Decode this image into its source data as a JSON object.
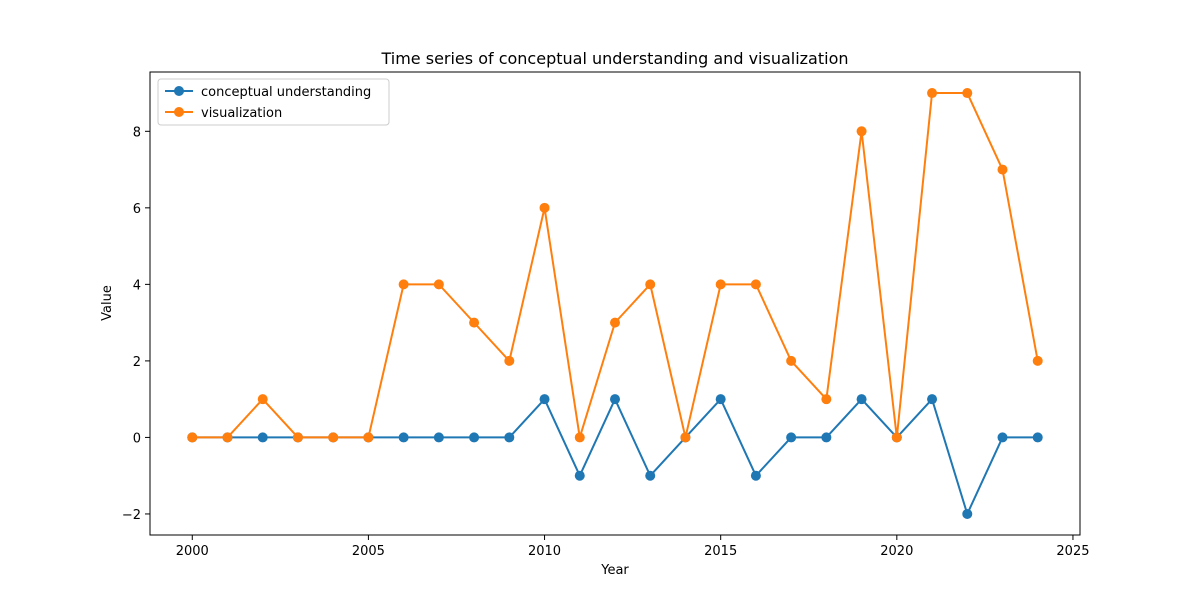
{
  "chart_data": {
    "type": "line",
    "title": "Time series of conceptual understanding and visualization",
    "xlabel": "Year",
    "ylabel": "Value",
    "x": [
      2000,
      2001,
      2002,
      2003,
      2004,
      2005,
      2006,
      2007,
      2008,
      2009,
      2010,
      2011,
      2012,
      2013,
      2014,
      2015,
      2016,
      2017,
      2018,
      2019,
      2020,
      2021,
      2022,
      2023,
      2024
    ],
    "xlim": [
      1998.8,
      2025.2
    ],
    "ylim": [
      -2.55,
      9.55
    ],
    "xticks": [
      2000,
      2005,
      2010,
      2015,
      2020,
      2025
    ],
    "yticks": [
      -2,
      0,
      2,
      4,
      6,
      8
    ],
    "ytick_labels": [
      "−2",
      "0",
      "2",
      "4",
      "6",
      "8"
    ],
    "grid": false,
    "legend_position": "top-left",
    "series": [
      {
        "name": "conceptual understanding",
        "color": "#1f77b4",
        "marker": "circle",
        "values": [
          0,
          0,
          0,
          0,
          0,
          0,
          0,
          0,
          0,
          0,
          1,
          -1,
          1,
          -1,
          0,
          1,
          -1,
          0,
          0,
          1,
          0,
          1,
          -2,
          0,
          0
        ]
      },
      {
        "name": "visualization",
        "color": "#ff7f0e",
        "marker": "circle",
        "values": [
          0,
          0,
          1,
          0,
          0,
          0,
          4,
          4,
          3,
          2,
          6,
          0,
          3,
          4,
          0,
          4,
          4,
          2,
          1,
          8,
          0,
          9,
          9,
          7,
          2
        ]
      }
    ]
  }
}
